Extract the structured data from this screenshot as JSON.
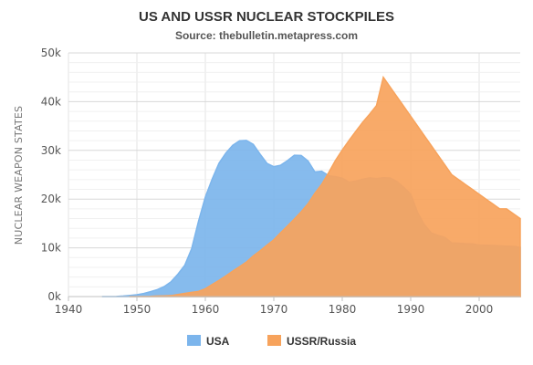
{
  "chart_data": {
    "type": "area",
    "title": "US AND USSR NUCLEAR STOCKPILES",
    "subtitle": "Source: thebulletin.metapress.com",
    "xlabel": "",
    "ylabel": "NUCLEAR WEAPON STATES",
    "xlim": [
      1940,
      2006
    ],
    "ylim": [
      0,
      50000
    ],
    "x_ticks": [
      1940,
      1950,
      1960,
      1970,
      1980,
      1990,
      2000
    ],
    "x_tick_labels": [
      "1940",
      "1950",
      "1960",
      "1970",
      "1980",
      "1990",
      "2000"
    ],
    "y_ticks": [
      0,
      10000,
      20000,
      30000,
      40000,
      50000
    ],
    "y_tick_labels": [
      "0k",
      "10k",
      "20k",
      "30k",
      "40k",
      "50k"
    ],
    "grid": true,
    "legend_position": "bottom",
    "series": [
      {
        "name": "USA",
        "color": "#7cb5ec",
        "points": [
          [
            1945,
            6
          ],
          [
            1946,
            11
          ],
          [
            1947,
            32
          ],
          [
            1948,
            110
          ],
          [
            1949,
            235
          ],
          [
            1950,
            369
          ],
          [
            1951,
            640
          ],
          [
            1952,
            1005
          ],
          [
            1953,
            1436
          ],
          [
            1954,
            2063
          ],
          [
            1955,
            3057
          ],
          [
            1956,
            4618
          ],
          [
            1957,
            6444
          ],
          [
            1958,
            9822
          ],
          [
            1959,
            15468
          ],
          [
            1960,
            20434
          ],
          [
            1961,
            24126
          ],
          [
            1962,
            27387
          ],
          [
            1963,
            29459
          ],
          [
            1964,
            31056
          ],
          [
            1965,
            31982
          ],
          [
            1966,
            32040
          ],
          [
            1967,
            31233
          ],
          [
            1968,
            29224
          ],
          [
            1969,
            27342
          ],
          [
            1970,
            26662
          ],
          [
            1971,
            26956
          ],
          [
            1972,
            27912
          ],
          [
            1973,
            28999
          ],
          [
            1974,
            28965
          ],
          [
            1975,
            27826
          ],
          [
            1976,
            25579
          ],
          [
            1977,
            25722
          ],
          [
            1978,
            24826
          ],
          [
            1979,
            24605
          ],
          [
            1980,
            24304
          ],
          [
            1981,
            23464
          ],
          [
            1982,
            23708
          ],
          [
            1983,
            24099
          ],
          [
            1984,
            24357
          ],
          [
            1985,
            24237
          ],
          [
            1986,
            24401
          ],
          [
            1987,
            24344
          ],
          [
            1988,
            23586
          ],
          [
            1989,
            22380
          ],
          [
            1990,
            21004
          ],
          [
            1991,
            17287
          ],
          [
            1992,
            14747
          ],
          [
            1993,
            13076
          ],
          [
            1994,
            12555
          ],
          [
            1995,
            12144
          ],
          [
            1996,
            11009
          ],
          [
            1997,
            10950
          ],
          [
            1998,
            10871
          ],
          [
            1999,
            10824
          ],
          [
            2000,
            10577
          ],
          [
            2001,
            10527
          ],
          [
            2002,
            10475
          ],
          [
            2003,
            10421
          ],
          [
            2004,
            10358
          ],
          [
            2005,
            10295
          ],
          [
            2006,
            10104
          ]
        ]
      },
      {
        "name": "USSR/Russia",
        "color": "#f7a35c",
        "points": [
          [
            1949,
            1
          ],
          [
            1950,
            5
          ],
          [
            1951,
            25
          ],
          [
            1952,
            50
          ],
          [
            1953,
            120
          ],
          [
            1954,
            150
          ],
          [
            1955,
            200
          ],
          [
            1956,
            426
          ],
          [
            1957,
            660
          ],
          [
            1958,
            869
          ],
          [
            1959,
            1060
          ],
          [
            1960,
            1605
          ],
          [
            1961,
            2471
          ],
          [
            1962,
            3322
          ],
          [
            1963,
            4238
          ],
          [
            1964,
            5221
          ],
          [
            1965,
            6129
          ],
          [
            1966,
            7089
          ],
          [
            1967,
            8339
          ],
          [
            1968,
            9399
          ],
          [
            1969,
            10538
          ],
          [
            1970,
            11643
          ],
          [
            1971,
            13092
          ],
          [
            1972,
            14478
          ],
          [
            1973,
            15915
          ],
          [
            1974,
            17385
          ],
          [
            1975,
            19055
          ],
          [
            1976,
            21205
          ],
          [
            1977,
            23044
          ],
          [
            1978,
            25393
          ],
          [
            1979,
            27935
          ],
          [
            1980,
            30062
          ],
          [
            1981,
            32049
          ],
          [
            1982,
            33952
          ],
          [
            1983,
            35804
          ],
          [
            1984,
            37431
          ],
          [
            1985,
            39197
          ],
          [
            1986,
            45000
          ],
          [
            1987,
            43000
          ],
          [
            1988,
            41000
          ],
          [
            1989,
            39000
          ],
          [
            1990,
            37000
          ],
          [
            1991,
            35000
          ],
          [
            1992,
            33000
          ],
          [
            1993,
            31000
          ],
          [
            1994,
            29000
          ],
          [
            1995,
            27000
          ],
          [
            1996,
            25000
          ],
          [
            1997,
            24000
          ],
          [
            1998,
            23000
          ],
          [
            1999,
            22000
          ],
          [
            2000,
            21000
          ],
          [
            2001,
            20000
          ],
          [
            2002,
            19000
          ],
          [
            2003,
            18000
          ],
          [
            2004,
            18000
          ],
          [
            2005,
            17000
          ],
          [
            2006,
            16000
          ]
        ]
      }
    ]
  }
}
